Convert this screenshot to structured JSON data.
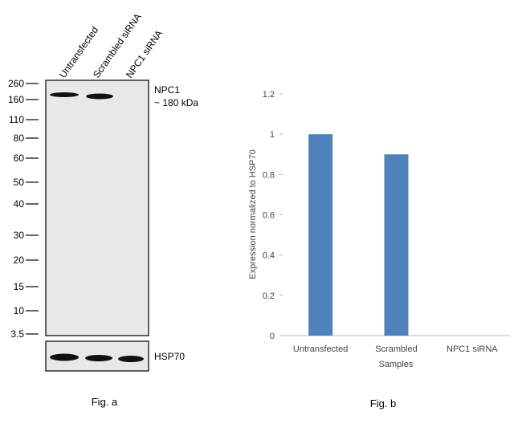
{
  "figure_a": {
    "lanes": [
      "Untransfected",
      "Scrambled siRNA",
      "NPC1 siRNA"
    ],
    "markers": [
      "260",
      "160",
      "110",
      "80",
      "60",
      "50",
      "40",
      "30",
      "20",
      "15",
      "10",
      "3.5"
    ],
    "target_label": "NPC1",
    "target_size": "~ 180 kDa",
    "control_label": "HSP70",
    "caption": "Fig. a"
  },
  "chart_data": {
    "type": "bar",
    "categories": [
      "Untransfected",
      "Scrambled",
      "NPC1 siRNA"
    ],
    "values": [
      1,
      0.9,
      0
    ],
    "color": "#4f81bd",
    "ylim": [
      0,
      1.2
    ],
    "yticks": [
      0,
      0.2,
      0.4,
      0.6,
      0.8,
      1,
      1.2
    ],
    "y_label": "Expression normalized to HSP70",
    "x_label": "Samples",
    "caption": "Fig. b"
  }
}
